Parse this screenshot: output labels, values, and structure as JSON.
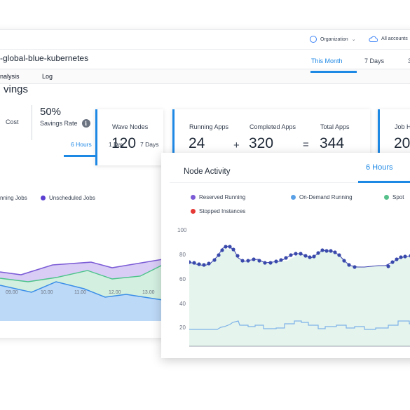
{
  "topbar": {
    "org_label": "Organization",
    "accounts_label": "All accounts",
    "org_icon": "radio-circle-icon",
    "accounts_icon": "cloud-icon"
  },
  "cluster_title": "-global-blue-kubernetes",
  "nav_tabs": [
    "nalysis",
    "Log"
  ],
  "time_range": {
    "options": [
      "This Month",
      "7 Days",
      "3"
    ],
    "selected": "This Month"
  },
  "savings": {
    "title": "vings",
    "cost_label": "Cost",
    "rate_value": "50%",
    "rate_label": "Savings Rate",
    "info_icon": "i"
  },
  "stats": {
    "wave_nodes": {
      "label": "Wave Nodes",
      "value": "120"
    },
    "running_apps": {
      "label": "Running Apps",
      "value": "24"
    },
    "completed_apps": {
      "label": "Completed Apps",
      "value": "320"
    },
    "total_apps": {
      "label": "Total Apps",
      "value": "344"
    },
    "job_h": {
      "label": "Job H",
      "value": "20"
    },
    "plus": "+",
    "equals": "="
  },
  "left_chart": {
    "range_options": [
      "6 Hours",
      "1 Day",
      "7 Days"
    ],
    "selected": "6 Hours",
    "legend": [
      {
        "label": "nning Jobs",
        "color": "#3b82f6"
      },
      {
        "label": "Unscheduled Jobs",
        "color": "#5b3fd1"
      }
    ],
    "x_labels": [
      "09.00",
      "10.00",
      "11.00",
      "12.00",
      "13.00"
    ]
  },
  "node_activity": {
    "title": "Node Activity",
    "range_label": "6 Hours",
    "legend": [
      {
        "label": "Reserved Running",
        "color": "#7c5cd6"
      },
      {
        "label": "On-Demand Running",
        "color": "#5aa0e6"
      },
      {
        "label": "Spot",
        "color": "#55c08a"
      },
      {
        "label": "Stopped Instances",
        "color": "#e53935"
      }
    ],
    "y_labels": [
      "100",
      "80",
      "60",
      "40",
      "20"
    ]
  },
  "colors": {
    "accent": "#1e88e5",
    "purple": "#5b3fd1",
    "green": "#55c08a"
  }
}
